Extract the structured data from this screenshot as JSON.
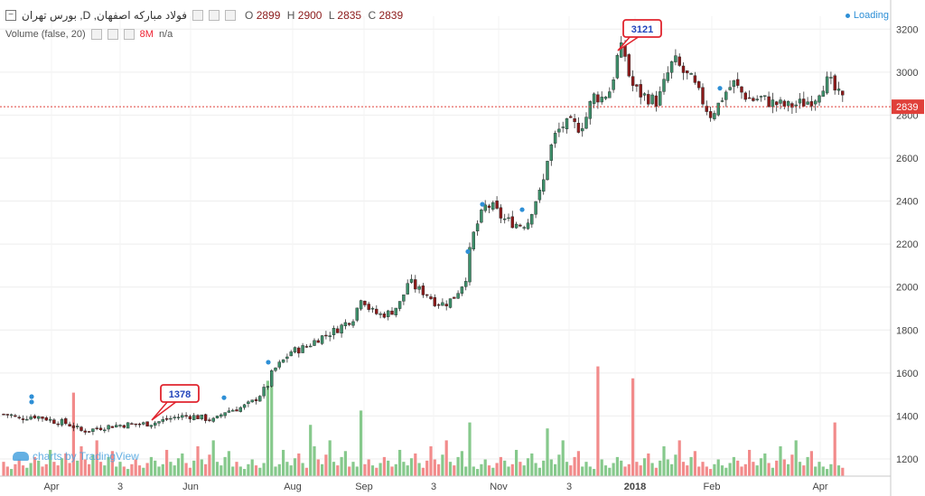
{
  "header": {
    "title": "بورس تهران ,D ,فولاد مبارکه اصفهان",
    "ohlc": [
      {
        "label": "O",
        "value": "2899"
      },
      {
        "label": "H",
        "value": "2900"
      },
      {
        "label": "L",
        "value": "2835"
      },
      {
        "label": "C",
        "value": "2839"
      }
    ],
    "volume_label": "Volume (false, 20)",
    "volume_value": "8M",
    "volume_extra": "n/a",
    "loading": "Loading"
  },
  "watermark": "charts by TradingView",
  "colors": {
    "up": "#3d8f6a",
    "down": "#8b1a1a",
    "vol_up": "#86c98c",
    "vol_down": "#f28b8b",
    "last_price": "#e0403a",
    "marker": "#2e8fd6"
  },
  "chart_data": {
    "type": "candlestick",
    "y_ticks": [
      1200,
      1400,
      1600,
      1800,
      2000,
      2200,
      2400,
      2600,
      2800,
      3000,
      3200
    ],
    "ylim": [
      1120,
      3260
    ],
    "x_labels": [
      "Apr",
      "3",
      "Jun",
      "Aug",
      "Sep",
      "3",
      "Nov",
      "3",
      "2018",
      "Feb",
      "Apr"
    ],
    "last_price": 2839,
    "annotations": [
      {
        "label": "1378",
        "value": 1378
      },
      {
        "label": "3121",
        "value": 3121
      }
    ],
    "close_path": [
      [
        0,
        1410
      ],
      [
        12,
        1405
      ],
      [
        20,
        1385
      ],
      [
        28,
        1395
      ],
      [
        38,
        1400
      ],
      [
        50,
        1390
      ],
      [
        60,
        1375
      ],
      [
        70,
        1370
      ],
      [
        80,
        1355
      ],
      [
        90,
        1330
      ],
      [
        100,
        1335
      ],
      [
        110,
        1345
      ],
      [
        125,
        1355
      ],
      [
        140,
        1360
      ],
      [
        155,
        1362
      ],
      [
        165,
        1365
      ],
      [
        175,
        1372
      ],
      [
        185,
        1385
      ],
      [
        195,
        1395
      ],
      [
        205,
        1400
      ],
      [
        215,
        1398
      ],
      [
        225,
        1390
      ],
      [
        238,
        1378
      ],
      [
        248,
        1420
      ],
      [
        258,
        1430
      ],
      [
        268,
        1440
      ],
      [
        278,
        1460
      ],
      [
        288,
        1500
      ],
      [
        296,
        1540
      ],
      [
        302,
        1610
      ],
      [
        312,
        1650
      ],
      [
        322,
        1700
      ],
      [
        332,
        1710
      ],
      [
        342,
        1730
      ],
      [
        352,
        1760
      ],
      [
        362,
        1780
      ],
      [
        372,
        1800
      ],
      [
        382,
        1830
      ],
      [
        392,
        1860
      ],
      [
        400,
        1960
      ],
      [
        410,
        1890
      ],
      [
        420,
        1870
      ],
      [
        432,
        1880
      ],
      [
        444,
        1930
      ],
      [
        452,
        2030
      ],
      [
        462,
        1990
      ],
      [
        472,
        1970
      ],
      [
        482,
        1930
      ],
      [
        492,
        1920
      ],
      [
        502,
        1950
      ],
      [
        510,
        2000
      ],
      [
        516,
        2050
      ],
      [
        522,
        2220
      ],
      [
        530,
        2310
      ],
      [
        538,
        2380
      ],
      [
        546,
        2370
      ],
      [
        556,
        2320
      ],
      [
        566,
        2300
      ],
      [
        576,
        2290
      ],
      [
        584,
        2300
      ],
      [
        592,
        2400
      ],
      [
        600,
        2450
      ],
      [
        606,
        2600
      ],
      [
        614,
        2700
      ],
      [
        622,
        2750
      ],
      [
        632,
        2760
      ],
      [
        642,
        2740
      ],
      [
        650,
        2800
      ],
      [
        656,
        2890
      ],
      [
        666,
        2880
      ],
      [
        676,
        2920
      ],
      [
        684,
        3080
      ],
      [
        690,
        3121
      ],
      [
        698,
        2950
      ],
      [
        708,
        2900
      ],
      [
        718,
        2880
      ],
      [
        728,
        2860
      ],
      [
        738,
        2980
      ],
      [
        746,
        3060
      ],
      [
        756,
        3000
      ],
      [
        766,
        2960
      ],
      [
        776,
        2880
      ],
      [
        786,
        2800
      ],
      [
        794,
        2840
      ],
      [
        802,
        2900
      ],
      [
        812,
        2950
      ],
      [
        822,
        2900
      ],
      [
        832,
        2870
      ],
      [
        842,
        2880
      ],
      [
        852,
        2860
      ],
      [
        862,
        2850
      ],
      [
        872,
        2840
      ],
      [
        882,
        2850
      ],
      [
        892,
        2860
      ],
      [
        902,
        2880
      ],
      [
        910,
        2940
      ],
      [
        918,
        2960
      ],
      [
        926,
        2900
      ],
      [
        932,
        2880
      ],
      [
        936,
        2839
      ]
    ],
    "volume_ylim": [
      0,
      100
    ],
    "volume_pattern": [
      12,
      8,
      6,
      10,
      14,
      9,
      7,
      11,
      16,
      13,
      8,
      10,
      22,
      12,
      9,
      15,
      19,
      11,
      7,
      13,
      25,
      14,
      10,
      18,
      30,
      12,
      9,
      16,
      21,
      8
    ],
    "volume_spikes": [
      {
        "x": 82,
        "v": 70
      },
      {
        "x": 298,
        "v": 80
      },
      {
        "x": 302,
        "v": 85
      },
      {
        "x": 398,
        "v": 60
      },
      {
        "x": 520,
        "v": 58
      },
      {
        "x": 522,
        "v": 45
      },
      {
        "x": 608,
        "v": 40
      },
      {
        "x": 660,
        "v": 92
      },
      {
        "x": 700,
        "v": 82
      },
      {
        "x": 924,
        "v": 45
      },
      {
        "x": 344,
        "v": 43
      },
      {
        "x": 400,
        "v": 55
      }
    ],
    "markers": [
      {
        "x": 35,
        "v": 1490
      },
      {
        "x": 35,
        "v": 1465
      },
      {
        "x": 248,
        "v": 1485
      },
      {
        "x": 297,
        "v": 1650
      },
      {
        "x": 518,
        "v": 2165
      },
      {
        "x": 534,
        "v": 2385
      },
      {
        "x": 578,
        "v": 2360
      },
      {
        "x": 797,
        "v": 2925
      }
    ]
  }
}
